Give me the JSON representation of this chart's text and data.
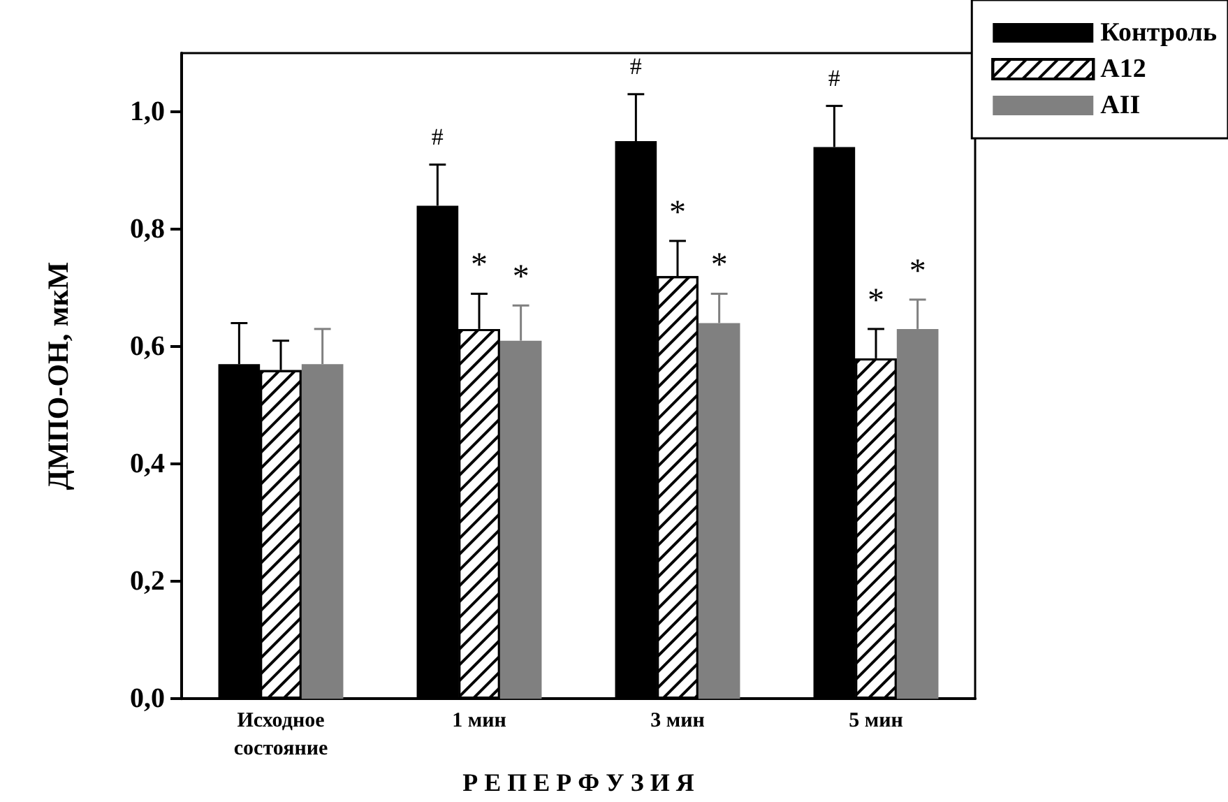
{
  "chart_data": {
    "type": "bar",
    "ylabel": "ДМПО-ОН, мкМ",
    "xlabel": "Р Е П Е Р Ф У З И Я",
    "categories": [
      "Исходное состояние",
      "1 мин",
      "3 мин",
      "5 мин"
    ],
    "series": [
      {
        "name": "Контроль",
        "color": "#000000",
        "values": [
          0.57,
          0.84,
          0.95,
          0.94
        ],
        "errors": [
          0.07,
          0.07,
          0.08,
          0.07
        ],
        "value_labels": [
          null,
          "#",
          "#",
          "#"
        ]
      },
      {
        "name": "A12",
        "color": "#ffffff",
        "values": [
          0.56,
          0.63,
          0.72,
          0.58
        ],
        "errors": [
          0.05,
          0.06,
          0.06,
          0.05
        ],
        "value_labels": [
          null,
          "*",
          "*",
          "*"
        ]
      },
      {
        "name": "AII",
        "color": "#808080",
        "values": [
          0.57,
          0.61,
          0.64,
          0.63
        ],
        "errors": [
          0.06,
          0.06,
          0.05,
          0.05
        ],
        "value_labels": [
          null,
          "*",
          "*",
          "*"
        ]
      }
    ],
    "ylim": [
      0,
      1.1
    ],
    "yticks": [
      {
        "value": 0,
        "label": "0,0"
      },
      {
        "value": 0.2,
        "label": "0,2"
      },
      {
        "value": 0.4,
        "label": "0,4"
      },
      {
        "value": 0.6,
        "label": "0,6"
      },
      {
        "value": 0.8,
        "label": "0,8"
      },
      {
        "value": 1.0,
        "label": "1,0"
      }
    ],
    "legend": "top right",
    "grid": false
  }
}
